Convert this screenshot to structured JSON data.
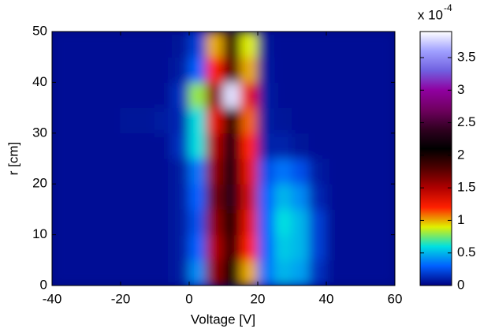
{
  "chart_data": {
    "type": "heatmap",
    "xlabel": "Voltage [V]",
    "ylabel": "r [cm]",
    "x": [
      -37.5,
      -32.5,
      -27.5,
      -22.5,
      -17.5,
      -12.5,
      -7.5,
      -2.5,
      2.5,
      7.5,
      12.5,
      17.5,
      22.5,
      27.5,
      32.5,
      37.5,
      42.5,
      47.5,
      52.5,
      57.5
    ],
    "y": [
      2.5,
      7.5,
      12.5,
      17.5,
      22.5,
      27.5,
      32.5,
      37.5,
      42.5,
      47.5
    ],
    "z": [
      [
        0.05,
        0.05,
        0.05,
        0.05,
        0.05,
        0.05,
        0.05,
        0.08,
        0.4,
        1.6,
        2.1,
        1.0,
        0.35,
        0.5,
        0.45,
        0.15,
        0.05,
        0.05,
        0.05,
        0.05
      ],
      [
        0.05,
        0.05,
        0.05,
        0.05,
        0.05,
        0.05,
        0.05,
        0.08,
        0.3,
        1.5,
        1.9,
        1.2,
        0.3,
        0.55,
        0.5,
        0.2,
        0.05,
        0.05,
        0.05,
        0.05
      ],
      [
        0.05,
        0.05,
        0.05,
        0.05,
        0.05,
        0.05,
        0.05,
        0.08,
        0.25,
        1.6,
        2.0,
        1.3,
        0.3,
        0.6,
        0.5,
        0.2,
        0.05,
        0.05,
        0.05,
        0.05
      ],
      [
        0.05,
        0.05,
        0.05,
        0.05,
        0.05,
        0.05,
        0.05,
        0.08,
        0.3,
        1.7,
        2.3,
        1.4,
        0.3,
        0.5,
        0.4,
        0.12,
        0.05,
        0.05,
        0.05,
        0.05
      ],
      [
        0.05,
        0.05,
        0.05,
        0.05,
        0.05,
        0.05,
        0.05,
        0.08,
        0.35,
        1.6,
        2.2,
        1.3,
        0.25,
        0.35,
        0.25,
        0.08,
        0.05,
        0.05,
        0.05,
        0.05
      ],
      [
        0.05,
        0.05,
        0.05,
        0.05,
        0.05,
        0.05,
        0.05,
        0.15,
        0.6,
        1.5,
        2.2,
        1.2,
        0.1,
        0.1,
        0.06,
        0.05,
        0.05,
        0.05,
        0.05,
        0.05
      ],
      [
        0.05,
        0.05,
        0.05,
        0.05,
        0.06,
        0.06,
        0.08,
        0.12,
        0.6,
        1.3,
        2.0,
        1.1,
        0.08,
        0.06,
        0.05,
        0.05,
        0.05,
        0.05,
        0.05,
        0.05
      ],
      [
        0.05,
        0.05,
        0.05,
        0.05,
        0.05,
        0.05,
        0.05,
        0.15,
        0.8,
        1.6,
        3.8,
        1.3,
        0.08,
        0.05,
        0.05,
        0.05,
        0.05,
        0.05,
        0.05,
        0.05
      ],
      [
        0.05,
        0.05,
        0.05,
        0.05,
        0.05,
        0.05,
        0.05,
        0.08,
        0.3,
        1.2,
        1.8,
        1.0,
        0.07,
        0.05,
        0.05,
        0.05,
        0.05,
        0.05,
        0.05,
        0.05
      ],
      [
        0.05,
        0.05,
        0.05,
        0.05,
        0.05,
        0.05,
        0.05,
        0.06,
        0.2,
        1.0,
        1.9,
        0.9,
        0.06,
        0.05,
        0.05,
        0.05,
        0.05,
        0.05,
        0.05,
        0.05
      ]
    ],
    "xlim": [
      -40,
      60
    ],
    "ylim": [
      0,
      50
    ],
    "xticks": [
      -40,
      -20,
      0,
      20,
      40,
      60
    ],
    "yticks": [
      0,
      10,
      20,
      30,
      40,
      50
    ],
    "clim": [
      0,
      3.9
    ],
    "cticks": [
      0,
      0.5,
      1,
      1.5,
      2,
      2.5,
      3,
      3.5
    ],
    "colorbar_scale": {
      "base": "x 10",
      "exponent": "-4"
    },
    "colormap": [
      "#000080",
      "#0060ff",
      "#00e0e0",
      "#e0f000",
      "#ff2000",
      "#b00000",
      "#500000",
      "#000000",
      "#300020",
      "#700060",
      "#9000a0",
      "#7060e0",
      "#a0a0ff",
      "#ffffff"
    ]
  }
}
